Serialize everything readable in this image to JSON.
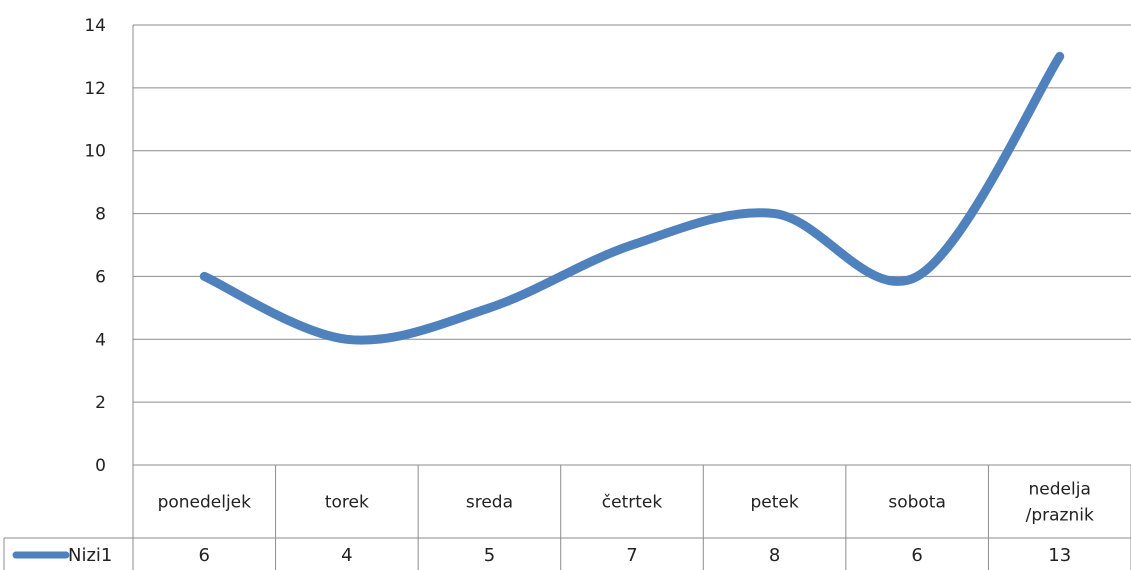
{
  "chart_data": {
    "type": "line",
    "categories": [
      [
        "ponedeljek"
      ],
      [
        "torek"
      ],
      [
        "sreda"
      ],
      [
        "četrtek"
      ],
      [
        "petek"
      ],
      [
        "sobota"
      ],
      [
        "nedelja",
        "/praznik"
      ]
    ],
    "series": [
      {
        "name": "Nizi1",
        "values": [
          6,
          4,
          5,
          7,
          8,
          6,
          13
        ],
        "color": "#4f81bd"
      }
    ],
    "ylim": [
      0,
      14
    ],
    "yticks": [
      0,
      2,
      4,
      6,
      8,
      10,
      12,
      14
    ],
    "grid": true,
    "smooth": true,
    "data_table": true,
    "title": "",
    "xlabel": "",
    "ylabel": ""
  }
}
